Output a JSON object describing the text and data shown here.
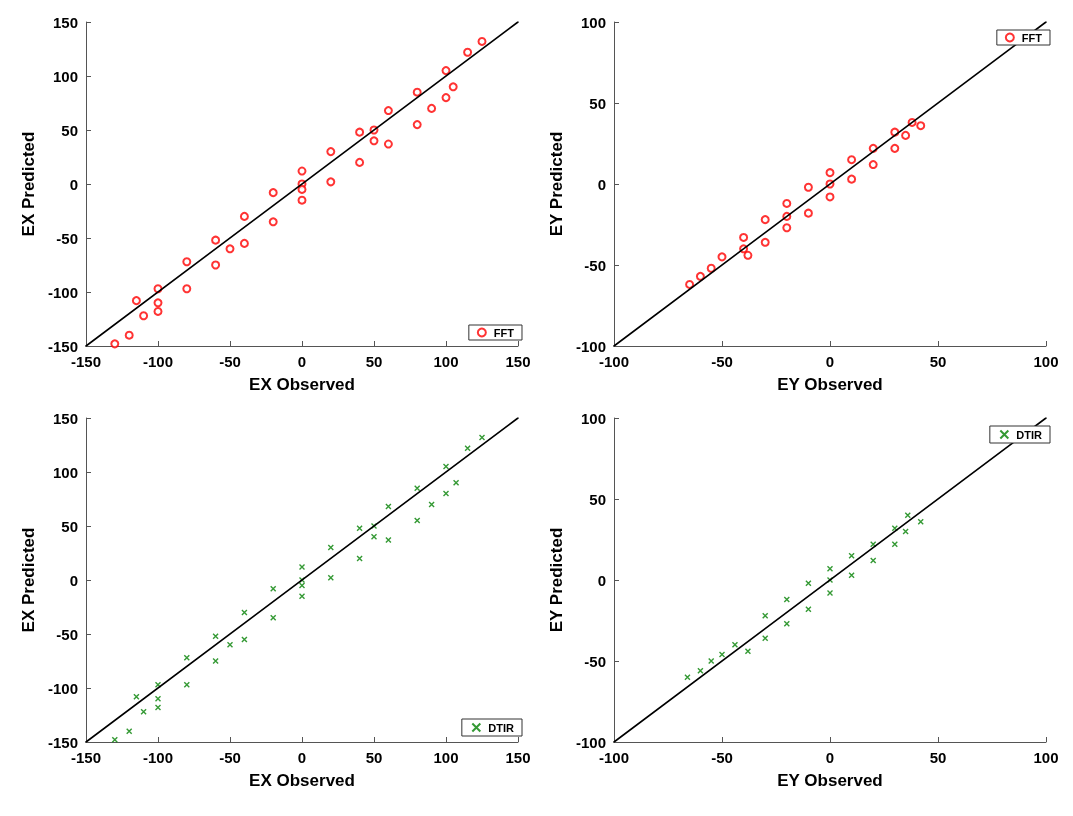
{
  "chart_data": [
    {
      "type": "scatter",
      "xlabel": "EX Observed",
      "ylabel": "EX Predicted",
      "xlim": [
        -150,
        150
      ],
      "ylim": [
        -150,
        150
      ],
      "xticks": [
        -150,
        -100,
        -50,
        0,
        50,
        100,
        150
      ],
      "yticks": [
        -150,
        -100,
        -50,
        0,
        50,
        100,
        150
      ],
      "grid": false,
      "legend": "bottom right",
      "series": [
        {
          "name": "FFT",
          "color": "#ff0000",
          "marker": "circle",
          "x": [
            -130,
            -120,
            -115,
            -110,
            -100,
            -100,
            -100,
            -80,
            -80,
            -60,
            -60,
            -50,
            -40,
            -40,
            -20,
            -20,
            0,
            0,
            0,
            0,
            20,
            20,
            40,
            40,
            50,
            50,
            60,
            60,
            80,
            80,
            90,
            100,
            100,
            105,
            115,
            125
          ],
          "values": [
            -148,
            -140,
            -108,
            -122,
            -97,
            -110,
            -118,
            -72,
            -97,
            -52,
            -75,
            -60,
            -30,
            -55,
            -8,
            -35,
            12,
            0,
            -5,
            -15,
            30,
            2,
            48,
            20,
            50,
            40,
            68,
            37,
            85,
            55,
            70,
            105,
            80,
            90,
            122,
            132
          ]
        },
        {
          "type": "line",
          "color": "#000000",
          "marker": "none",
          "line_style": "solid",
          "x": [
            -150,
            150
          ],
          "values": [
            -150,
            150
          ]
        }
      ]
    },
    {
      "type": "scatter",
      "xlabel": "EY Observed",
      "ylabel": "EY Predicted",
      "xlim": [
        -100,
        100
      ],
      "ylim": [
        -100,
        100
      ],
      "xticks": [
        -100,
        -50,
        0,
        50,
        100
      ],
      "yticks": [
        -100,
        -50,
        0,
        50,
        100
      ],
      "grid": false,
      "legend": "top right",
      "series": [
        {
          "name": "FFT",
          "color": "#ff0000",
          "marker": "circle",
          "x": [
            -65,
            -60,
            -55,
            -50,
            -40,
            -40,
            -38,
            -30,
            -30,
            -20,
            -20,
            -20,
            -10,
            -10,
            0,
            0,
            0,
            10,
            10,
            20,
            20,
            30,
            30,
            35,
            38,
            42
          ],
          "values": [
            -62,
            -57,
            -52,
            -45,
            -33,
            -40,
            -44,
            -22,
            -36,
            -12,
            -20,
            -27,
            -2,
            -18,
            7,
            0,
            -8,
            15,
            3,
            22,
            12,
            32,
            22,
            30,
            38,
            36
          ]
        },
        {
          "type": "line",
          "color": "#000000",
          "marker": "none",
          "line_style": "solid",
          "x": [
            -100,
            100
          ],
          "values": [
            -100,
            100
          ]
        }
      ]
    },
    {
      "type": "scatter",
      "xlabel": "EX Observed",
      "ylabel": "EX Predicted",
      "xlim": [
        -150,
        150
      ],
      "ylim": [
        -150,
        150
      ],
      "xticks": [
        -150,
        -100,
        -50,
        0,
        50,
        100,
        150
      ],
      "yticks": [
        -150,
        -100,
        -50,
        0,
        50,
        100,
        150
      ],
      "grid": false,
      "legend": "bottom right",
      "series": [
        {
          "name": "DTIR",
          "color": "#007f00",
          "marker": "cross",
          "x": [
            -130,
            -120,
            -115,
            -110,
            -100,
            -100,
            -100,
            -80,
            -80,
            -60,
            -60,
            -50,
            -40,
            -40,
            -20,
            -20,
            0,
            0,
            0,
            0,
            20,
            20,
            40,
            40,
            50,
            50,
            60,
            60,
            80,
            80,
            90,
            100,
            100,
            107,
            115,
            125
          ],
          "values": [
            -148,
            -140,
            -108,
            -122,
            -97,
            -110,
            -118,
            -72,
            -97,
            -52,
            -75,
            -60,
            -30,
            -55,
            -8,
            -35,
            12,
            0,
            -5,
            -15,
            30,
            2,
            48,
            20,
            50,
            40,
            68,
            37,
            85,
            55,
            70,
            105,
            80,
            90,
            122,
            132
          ]
        },
        {
          "type": "line",
          "color": "#000000",
          "marker": "none",
          "line_style": "solid",
          "x": [
            -150,
            150
          ],
          "values": [
            -150,
            150
          ]
        }
      ]
    },
    {
      "type": "scatter",
      "xlabel": "EY Observed",
      "ylabel": "EY Predicted",
      "xlim": [
        -100,
        100
      ],
      "ylim": [
        -100,
        100
      ],
      "xticks": [
        -100,
        -50,
        0,
        50,
        100
      ],
      "yticks": [
        -100,
        -50,
        0,
        50,
        100
      ],
      "grid": false,
      "legend": "top right",
      "series": [
        {
          "name": "DTIR",
          "color": "#007f00",
          "marker": "cross",
          "x": [
            -66,
            -60,
            -55,
            -50,
            -44,
            -38,
            -30,
            -30,
            -20,
            -20,
            -10,
            -10,
            0,
            0,
            0,
            10,
            10,
            20,
            20,
            30,
            30,
            35,
            36,
            42
          ],
          "values": [
            -60,
            -56,
            -50,
            -46,
            -40,
            -44,
            -22,
            -36,
            -12,
            -27,
            -2,
            -18,
            7,
            0,
            -8,
            15,
            3,
            22,
            12,
            32,
            22,
            30,
            40,
            36
          ]
        },
        {
          "type": "line",
          "color": "#000000",
          "marker": "none",
          "line_style": "solid",
          "x": [
            -100,
            100
          ],
          "values": [
            -100,
            100
          ]
        }
      ]
    }
  ]
}
